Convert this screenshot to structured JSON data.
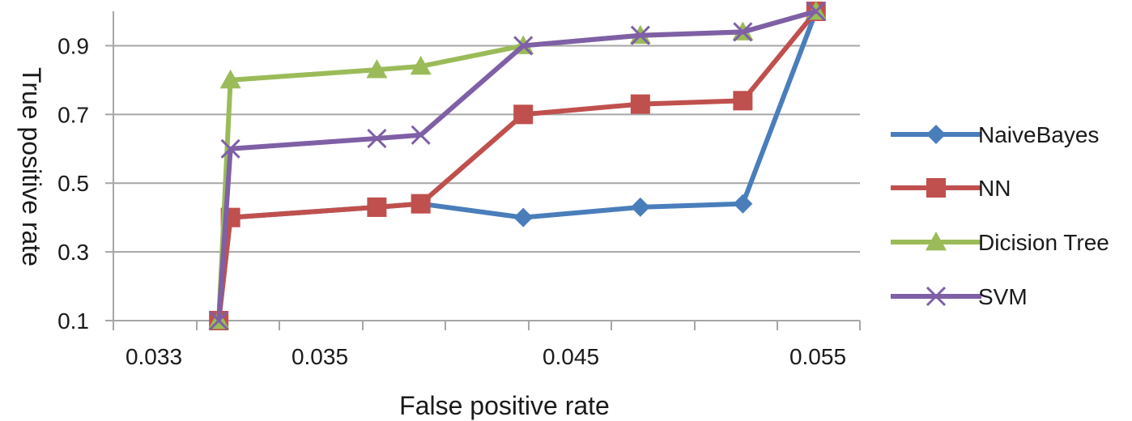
{
  "chart_data": {
    "type": "line",
    "title": "",
    "xlabel": "False positive rate",
    "ylabel": "True positive rate",
    "x_tick_labels": [
      "0.033",
      "0.035",
      "0.045",
      "0.055"
    ],
    "y_ticks": [
      0.1,
      0.3,
      0.5,
      0.7,
      0.9
    ],
    "y_tick_labels": [
      "0.1",
      "0.3",
      "0.5",
      "0.7",
      "0.9"
    ],
    "ylim": [
      0.1,
      1.0
    ],
    "grid": "horizontal",
    "legend_position": "right",
    "series": [
      {
        "name": "NaiveBayes",
        "color": "#4a7ebb",
        "marker": "diamond",
        "points": [
          [
            0.0346,
            0.1
          ],
          [
            0.035,
            0.4
          ],
          [
            0.04,
            0.43
          ],
          [
            0.0415,
            0.44
          ],
          [
            0.045,
            0.4
          ],
          [
            0.049,
            0.43
          ],
          [
            0.0525,
            0.44
          ],
          [
            0.055,
            1.0
          ]
        ]
      },
      {
        "name": "NN",
        "color": "#c0504d",
        "marker": "square",
        "points": [
          [
            0.0346,
            0.1
          ],
          [
            0.035,
            0.4
          ],
          [
            0.04,
            0.43
          ],
          [
            0.0415,
            0.44
          ],
          [
            0.045,
            0.7
          ],
          [
            0.049,
            0.73
          ],
          [
            0.0525,
            0.74
          ],
          [
            0.055,
            1.0
          ]
        ]
      },
      {
        "name": "Dicision Tree",
        "color": "#9bbb59",
        "marker": "triangle",
        "points": [
          [
            0.0346,
            0.1
          ],
          [
            0.035,
            0.8
          ],
          [
            0.04,
            0.83
          ],
          [
            0.0415,
            0.84
          ],
          [
            0.045,
            0.9
          ],
          [
            0.049,
            0.93
          ],
          [
            0.0525,
            0.94
          ],
          [
            0.055,
            1.0
          ]
        ]
      },
      {
        "name": "SVM",
        "color": "#7f5fa6",
        "marker": "x",
        "points": [
          [
            0.0346,
            0.1
          ],
          [
            0.035,
            0.6
          ],
          [
            0.04,
            0.63
          ],
          [
            0.0415,
            0.64
          ],
          [
            0.045,
            0.9
          ],
          [
            0.049,
            0.93
          ],
          [
            0.0525,
            0.94
          ],
          [
            0.055,
            1.0
          ]
        ]
      }
    ]
  }
}
